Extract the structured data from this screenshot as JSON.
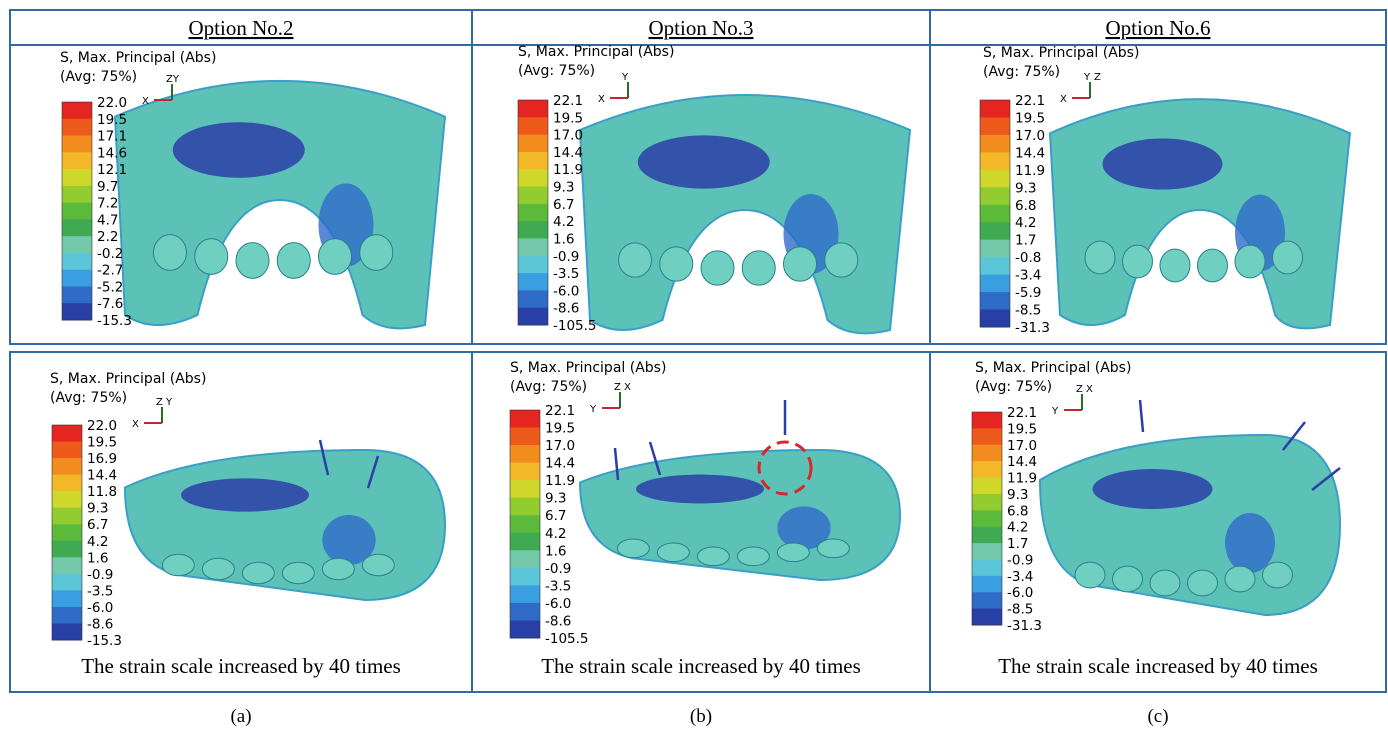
{
  "panels": [
    {
      "header": "Option No.2",
      "top": {
        "legend_title": "S, Max. Principal (Abs)",
        "legend_subtitle": "(Avg: 75%)",
        "values": [
          "22.0",
          "19.5",
          "17.1",
          "14.6",
          "12.1",
          "9.7",
          "7.2",
          "4.7",
          "2.2",
          "-0.2",
          "-2.7",
          "-5.2",
          "-7.6",
          "-15.3"
        ],
        "axes": [
          "ZY",
          "X"
        ]
      },
      "bottom": {
        "legend_title": "S, Max. Principal (Abs)",
        "legend_subtitle": "(Avg: 75%)",
        "values": [
          "22.0",
          "19.5",
          "16.9",
          "14.4",
          "11.8",
          "9.3",
          "6.7",
          "4.2",
          "1.6",
          "-0.9",
          "-3.5",
          "-6.0",
          "-8.6",
          "-15.3"
        ],
        "axes": [
          "Z",
          "Y",
          "X"
        ]
      },
      "caption": "The strain scale increased by 40 times",
      "label": "(a)"
    },
    {
      "header": "Option No.3",
      "top": {
        "legend_title": "S, Max. Principal (Abs)",
        "legend_subtitle": "(Avg: 75%)",
        "values": [
          "22.1",
          "19.5",
          "17.0",
          "14.4",
          "11.9",
          "9.3",
          "6.7",
          "4.2",
          "1.6",
          "-0.9",
          "-3.5",
          "-6.0",
          "-8.6",
          "-105.5"
        ],
        "axes": [
          "Y",
          "X"
        ]
      },
      "bottom": {
        "legend_title": "S, Max. Principal (Abs)",
        "legend_subtitle": "(Avg: 75%)",
        "values": [
          "22.1",
          "19.5",
          "17.0",
          "14.4",
          "11.9",
          "9.3",
          "6.7",
          "4.2",
          "1.6",
          "-0.9",
          "-3.5",
          "-6.0",
          "-8.6",
          "-105.5"
        ],
        "axes": [
          "Z",
          "X",
          "Y"
        ]
      },
      "caption": "The strain scale increased by 40 times",
      "label": "(b)"
    },
    {
      "header": "Option No.6",
      "top": {
        "legend_title": "S, Max. Principal (Abs)",
        "legend_subtitle": "(Avg: 75%)",
        "values": [
          "22.1",
          "19.5",
          "17.0",
          "14.4",
          "11.9",
          "9.3",
          "6.8",
          "4.2",
          "1.7",
          "-0.8",
          "-3.4",
          "-5.9",
          "-8.5",
          "-31.3"
        ],
        "axes": [
          "Y",
          "Z",
          "X"
        ]
      },
      "bottom": {
        "legend_title": "S, Max. Principal (Abs)",
        "legend_subtitle": "(Avg: 75%)",
        "values": [
          "22.1",
          "19.5",
          "17.0",
          "14.4",
          "11.9",
          "9.3",
          "6.8",
          "4.2",
          "1.7",
          "-0.9",
          "-3.4",
          "-6.0",
          "-8.5",
          "-31.3"
        ],
        "axes": [
          "Z",
          "X",
          "Y"
        ]
      },
      "caption": "The strain scale increased by 40 times",
      "label": "(c)"
    }
  ]
}
